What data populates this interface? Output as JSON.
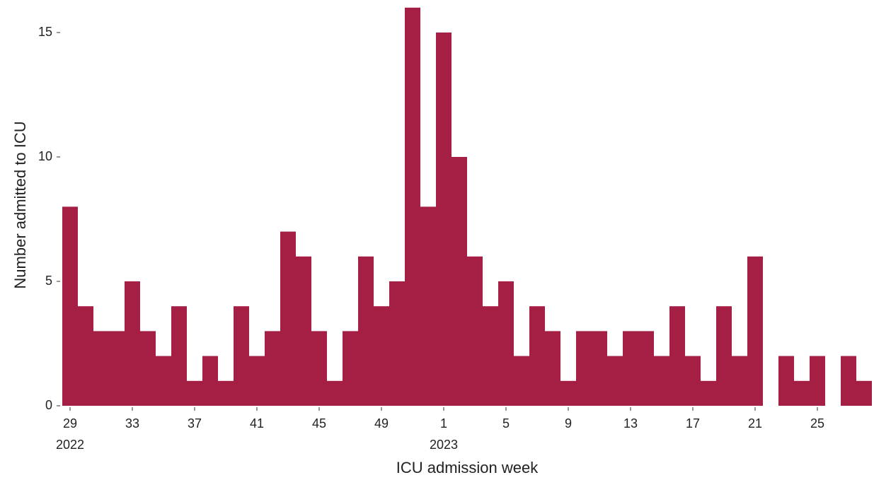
{
  "chart_data": {
    "type": "bar",
    "xlabel": "ICU admission week",
    "ylabel": "Number admitted to ICU",
    "categories": [
      "29\n2022",
      null,
      null,
      null,
      "33",
      null,
      null,
      null,
      "37",
      null,
      null,
      null,
      "41",
      null,
      null,
      null,
      "45",
      null,
      null,
      null,
      "49",
      null,
      null,
      null,
      "1\n2023",
      null,
      null,
      null,
      "5",
      null,
      null,
      null,
      "9",
      null,
      null,
      null,
      "13",
      null,
      null,
      null,
      "17",
      null,
      null,
      null,
      "21",
      null,
      null,
      null,
      "25",
      null,
      null,
      null
    ],
    "values": [
      8,
      4,
      3,
      3,
      5,
      3,
      2,
      4,
      1,
      2,
      1,
      4,
      2,
      3,
      7,
      6,
      3,
      1,
      3,
      6,
      4,
      5,
      16,
      8,
      15,
      10,
      6,
      4,
      5,
      2,
      4,
      3,
      1,
      3,
      3,
      2,
      3,
      3,
      2,
      4,
      2,
      1,
      4,
      2,
      6,
      0,
      2,
      1,
      2,
      0,
      2,
      1
    ],
    "color": "#a51e44",
    "ylim": [
      0,
      16
    ],
    "yticks": [
      0,
      5,
      10,
      15
    ],
    "grid": false
  }
}
